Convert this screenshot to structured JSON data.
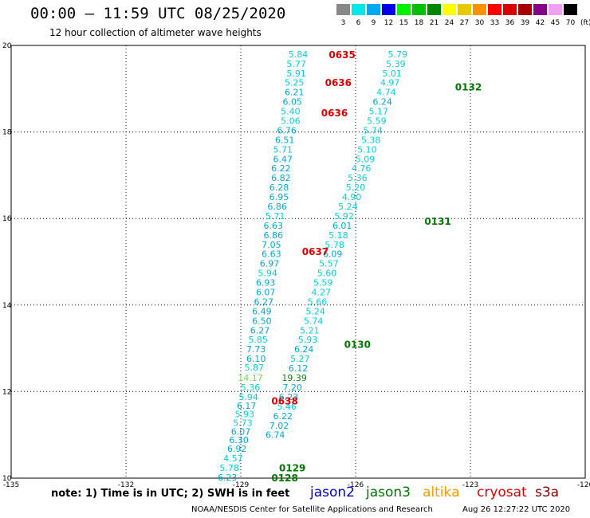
{
  "header": {
    "title": "00:00 – 11:59 UTC 08/25/2020",
    "subtitle": "12 hour collection of altimeter wave heights"
  },
  "color_scale": {
    "labels": [
      "3",
      "6",
      "9",
      "12",
      "15",
      "18",
      "21",
      "24",
      "27",
      "30",
      "33",
      "36",
      "39",
      "42",
      "45",
      "70"
    ],
    "unit": "(ft)",
    "colors": [
      "#888888",
      "#00e8e8",
      "#00a8f0",
      "#0000e8",
      "#00f000",
      "#00c000",
      "#008800",
      "#ffff00",
      "#e8c800",
      "#ff9000",
      "#ff0000",
      "#d80000",
      "#a80000",
      "#880088",
      "#f0a0f0",
      "#000000"
    ]
  },
  "axes": {
    "lon_ticks": [
      "-135",
      "-132",
      "-129",
      "-126",
      "-123",
      "-120"
    ],
    "lat_ticks": [
      "10",
      "12",
      "14",
      "16",
      "18",
      "20"
    ],
    "lon_range": [
      -135,
      -120
    ],
    "lat_range": [
      10,
      20
    ]
  },
  "legend": {
    "note": "note: 1) Time is in UTC; 2) SWH is in feet",
    "satellites": [
      {
        "name": "jason2",
        "color": "#0000cc"
      },
      {
        "name": "jason3",
        "color": "#007700"
      },
      {
        "name": "altika",
        "color": "#ff9900"
      },
      {
        "name": "cryosat",
        "color": "#dd0000"
      },
      {
        "name": "s3a",
        "color": "#880000"
      }
    ]
  },
  "footer": {
    "credit": "NOAA/NESDIS Center for Satellite Applications and Research",
    "timestamp": "Aug 26 12:27:22 UTC 2020"
  },
  "chart_data": {
    "type": "scatter",
    "pass_labels": [
      {
        "text": "0635",
        "lon": -126.7,
        "lat": 19.8,
        "color": "#dd0000"
      },
      {
        "text": "0636",
        "lon": -126.8,
        "lat": 19.15,
        "color": "#dd0000"
      },
      {
        "text": "0636",
        "lon": -126.9,
        "lat": 18.45,
        "color": "#dd0000"
      },
      {
        "text": "0637",
        "lon": -127.4,
        "lat": 15.25,
        "color": "#dd0000"
      },
      {
        "text": "0638",
        "lon": -128.2,
        "lat": 11.8,
        "color": "#dd0000"
      },
      {
        "text": "0132",
        "lon": -123.4,
        "lat": 19.05,
        "color": "#007700"
      },
      {
        "text": "0131",
        "lon": -124.2,
        "lat": 15.95,
        "color": "#007700"
      },
      {
        "text": "0130",
        "lon": -126.3,
        "lat": 13.1,
        "color": "#007700"
      },
      {
        "text": "0129",
        "lon": -128.0,
        "lat": 10.25,
        "color": "#007700"
      },
      {
        "text": "0128",
        "lon": -128.2,
        "lat": 10.02,
        "color": "#007700"
      }
    ],
    "track_cryosat": [
      {
        "v": "5.84",
        "lon": -127.5,
        "lat": 19.8
      },
      {
        "v": "5.77",
        "lon": -127.55,
        "lat": 19.58
      },
      {
        "v": "5.91",
        "lon": -127.55,
        "lat": 19.36
      },
      {
        "v": "5.25",
        "lon": -127.6,
        "lat": 19.14
      },
      {
        "v": "6.21",
        "lon": -127.6,
        "lat": 18.92
      },
      {
        "v": "6.05",
        "lon": -127.65,
        "lat": 18.7
      },
      {
        "v": "5.40",
        "lon": -127.7,
        "lat": 18.48
      },
      {
        "v": "5.06",
        "lon": -127.7,
        "lat": 18.26
      },
      {
        "v": "6.76",
        "lon": -127.8,
        "lat": 18.04
      },
      {
        "v": "6.51",
        "lon": -127.85,
        "lat": 17.82
      },
      {
        "v": "5.71",
        "lon": -127.9,
        "lat": 17.6
      },
      {
        "v": "6.47",
        "lon": -127.9,
        "lat": 17.38
      },
      {
        "v": "6.22",
        "lon": -127.95,
        "lat": 17.16
      },
      {
        "v": "6.82",
        "lon": -127.95,
        "lat": 16.94
      },
      {
        "v": "6.28",
        "lon": -128.0,
        "lat": 16.72
      },
      {
        "v": "6.95",
        "lon": -128.0,
        "lat": 16.5
      },
      {
        "v": "6.86",
        "lon": -128.05,
        "lat": 16.28
      },
      {
        "v": "5.71",
        "lon": -128.1,
        "lat": 16.06
      },
      {
        "v": "6.63",
        "lon": -128.15,
        "lat": 15.84
      },
      {
        "v": "6.86",
        "lon": -128.15,
        "lat": 15.62
      },
      {
        "v": "7.05",
        "lon": -128.2,
        "lat": 15.4
      },
      {
        "v": "6.63",
        "lon": -128.2,
        "lat": 15.18
      },
      {
        "v": "6.97",
        "lon": -128.25,
        "lat": 14.96
      },
      {
        "v": "5.94",
        "lon": -128.3,
        "lat": 14.74
      },
      {
        "v": "6.93",
        "lon": -128.35,
        "lat": 14.52
      },
      {
        "v": "6.07",
        "lon": -128.35,
        "lat": 14.3
      },
      {
        "v": "6.27",
        "lon": -128.4,
        "lat": 14.08
      },
      {
        "v": "6.49",
        "lon": -128.45,
        "lat": 13.86
      },
      {
        "v": "6.50",
        "lon": -128.45,
        "lat": 13.64
      },
      {
        "v": "6.27",
        "lon": -128.5,
        "lat": 13.42
      },
      {
        "v": "5.85",
        "lon": -128.55,
        "lat": 13.2
      },
      {
        "v": "7.73",
        "lon": -128.6,
        "lat": 12.98
      },
      {
        "v": "6.10",
        "lon": -128.6,
        "lat": 12.76
      },
      {
        "v": "5.87",
        "lon": -128.65,
        "lat": 12.56
      },
      {
        "v": "14.17",
        "lon": -128.75,
        "lat": 12.32
      },
      {
        "v": "5.36",
        "lon": -128.75,
        "lat": 12.1
      },
      {
        "v": "5.94",
        "lon": -128.8,
        "lat": 11.88
      },
      {
        "v": "6.17",
        "lon": -128.85,
        "lat": 11.68
      },
      {
        "v": "5.93",
        "lon": -128.9,
        "lat": 11.48
      },
      {
        "v": "5.73",
        "lon": -128.95,
        "lat": 11.28
      },
      {
        "v": "6.07",
        "lon": -129.0,
        "lat": 11.08
      },
      {
        "v": "6.30",
        "lon": -129.05,
        "lat": 10.88
      },
      {
        "v": "6.92",
        "lon": -129.1,
        "lat": 10.68
      },
      {
        "v": "4.57",
        "lon": -129.2,
        "lat": 10.46
      },
      {
        "v": "5.78",
        "lon": -129.3,
        "lat": 10.24
      },
      {
        "v": "6.23",
        "lon": -129.35,
        "lat": 10.02
      }
    ],
    "track_jason3": [
      {
        "v": "5.79",
        "lon": -124.9,
        "lat": 19.8
      },
      {
        "v": "5.39",
        "lon": -124.95,
        "lat": 19.58
      },
      {
        "v": "5.01",
        "lon": -125.05,
        "lat": 19.36
      },
      {
        "v": "4.97",
        "lon": -125.1,
        "lat": 19.14
      },
      {
        "v": "4.74",
        "lon": -125.2,
        "lat": 18.92
      },
      {
        "v": "6.24",
        "lon": -125.3,
        "lat": 18.7
      },
      {
        "v": "5.17",
        "lon": -125.4,
        "lat": 18.48
      },
      {
        "v": "5.59",
        "lon": -125.45,
        "lat": 18.26
      },
      {
        "v": "5.74",
        "lon": -125.55,
        "lat": 18.04
      },
      {
        "v": "5.38",
        "lon": -125.6,
        "lat": 17.82
      },
      {
        "v": "5.10",
        "lon": -125.7,
        "lat": 17.6
      },
      {
        "v": "5.09",
        "lon": -125.75,
        "lat": 17.38
      },
      {
        "v": "4.76",
        "lon": -125.85,
        "lat": 17.16
      },
      {
        "v": "5.36",
        "lon": -125.95,
        "lat": 16.94
      },
      {
        "v": "5.20",
        "lon": -126.0,
        "lat": 16.72
      },
      {
        "v": "4.90",
        "lon": -126.1,
        "lat": 16.5
      },
      {
        "v": "5.24",
        "lon": -126.2,
        "lat": 16.28
      },
      {
        "v": "5.92",
        "lon": -126.3,
        "lat": 16.06
      },
      {
        "v": "6.01",
        "lon": -126.35,
        "lat": 15.84
      },
      {
        "v": "5.18",
        "lon": -126.45,
        "lat": 15.62
      },
      {
        "v": "5.78",
        "lon": -126.55,
        "lat": 15.4
      },
      {
        "v": "6.09",
        "lon": -126.6,
        "lat": 15.18
      },
      {
        "v": "5.57",
        "lon": -126.7,
        "lat": 14.96
      },
      {
        "v": "5.60",
        "lon": -126.75,
        "lat": 14.74
      },
      {
        "v": "5.59",
        "lon": -126.85,
        "lat": 14.52
      },
      {
        "v": "4.27",
        "lon": -126.9,
        "lat": 14.3
      },
      {
        "v": "5.66",
        "lon": -127.0,
        "lat": 14.08
      },
      {
        "v": "5.24",
        "lon": -127.05,
        "lat": 13.86
      },
      {
        "v": "5.74",
        "lon": -127.1,
        "lat": 13.64
      },
      {
        "v": "5.21",
        "lon": -127.2,
        "lat": 13.42
      },
      {
        "v": "5.93",
        "lon": -127.25,
        "lat": 13.2
      },
      {
        "v": "6.24",
        "lon": -127.35,
        "lat": 12.98
      },
      {
        "v": "5.27",
        "lon": -127.45,
        "lat": 12.76
      },
      {
        "v": "6.12",
        "lon": -127.5,
        "lat": 12.54
      },
      {
        "v": "19.39",
        "lon": -127.6,
        "lat": 12.32
      },
      {
        "v": "7.20",
        "lon": -127.65,
        "lat": 12.1
      },
      {
        "v": "6.23",
        "lon": -127.75,
        "lat": 11.88
      },
      {
        "v": "5.46",
        "lon": -127.8,
        "lat": 11.66
      },
      {
        "v": "6.22",
        "lon": -127.9,
        "lat": 11.44
      },
      {
        "v": "7.02",
        "lon": -128.0,
        "lat": 11.22
      },
      {
        "v": "6.74",
        "lon": -128.1,
        "lat": 11.0
      }
    ]
  }
}
